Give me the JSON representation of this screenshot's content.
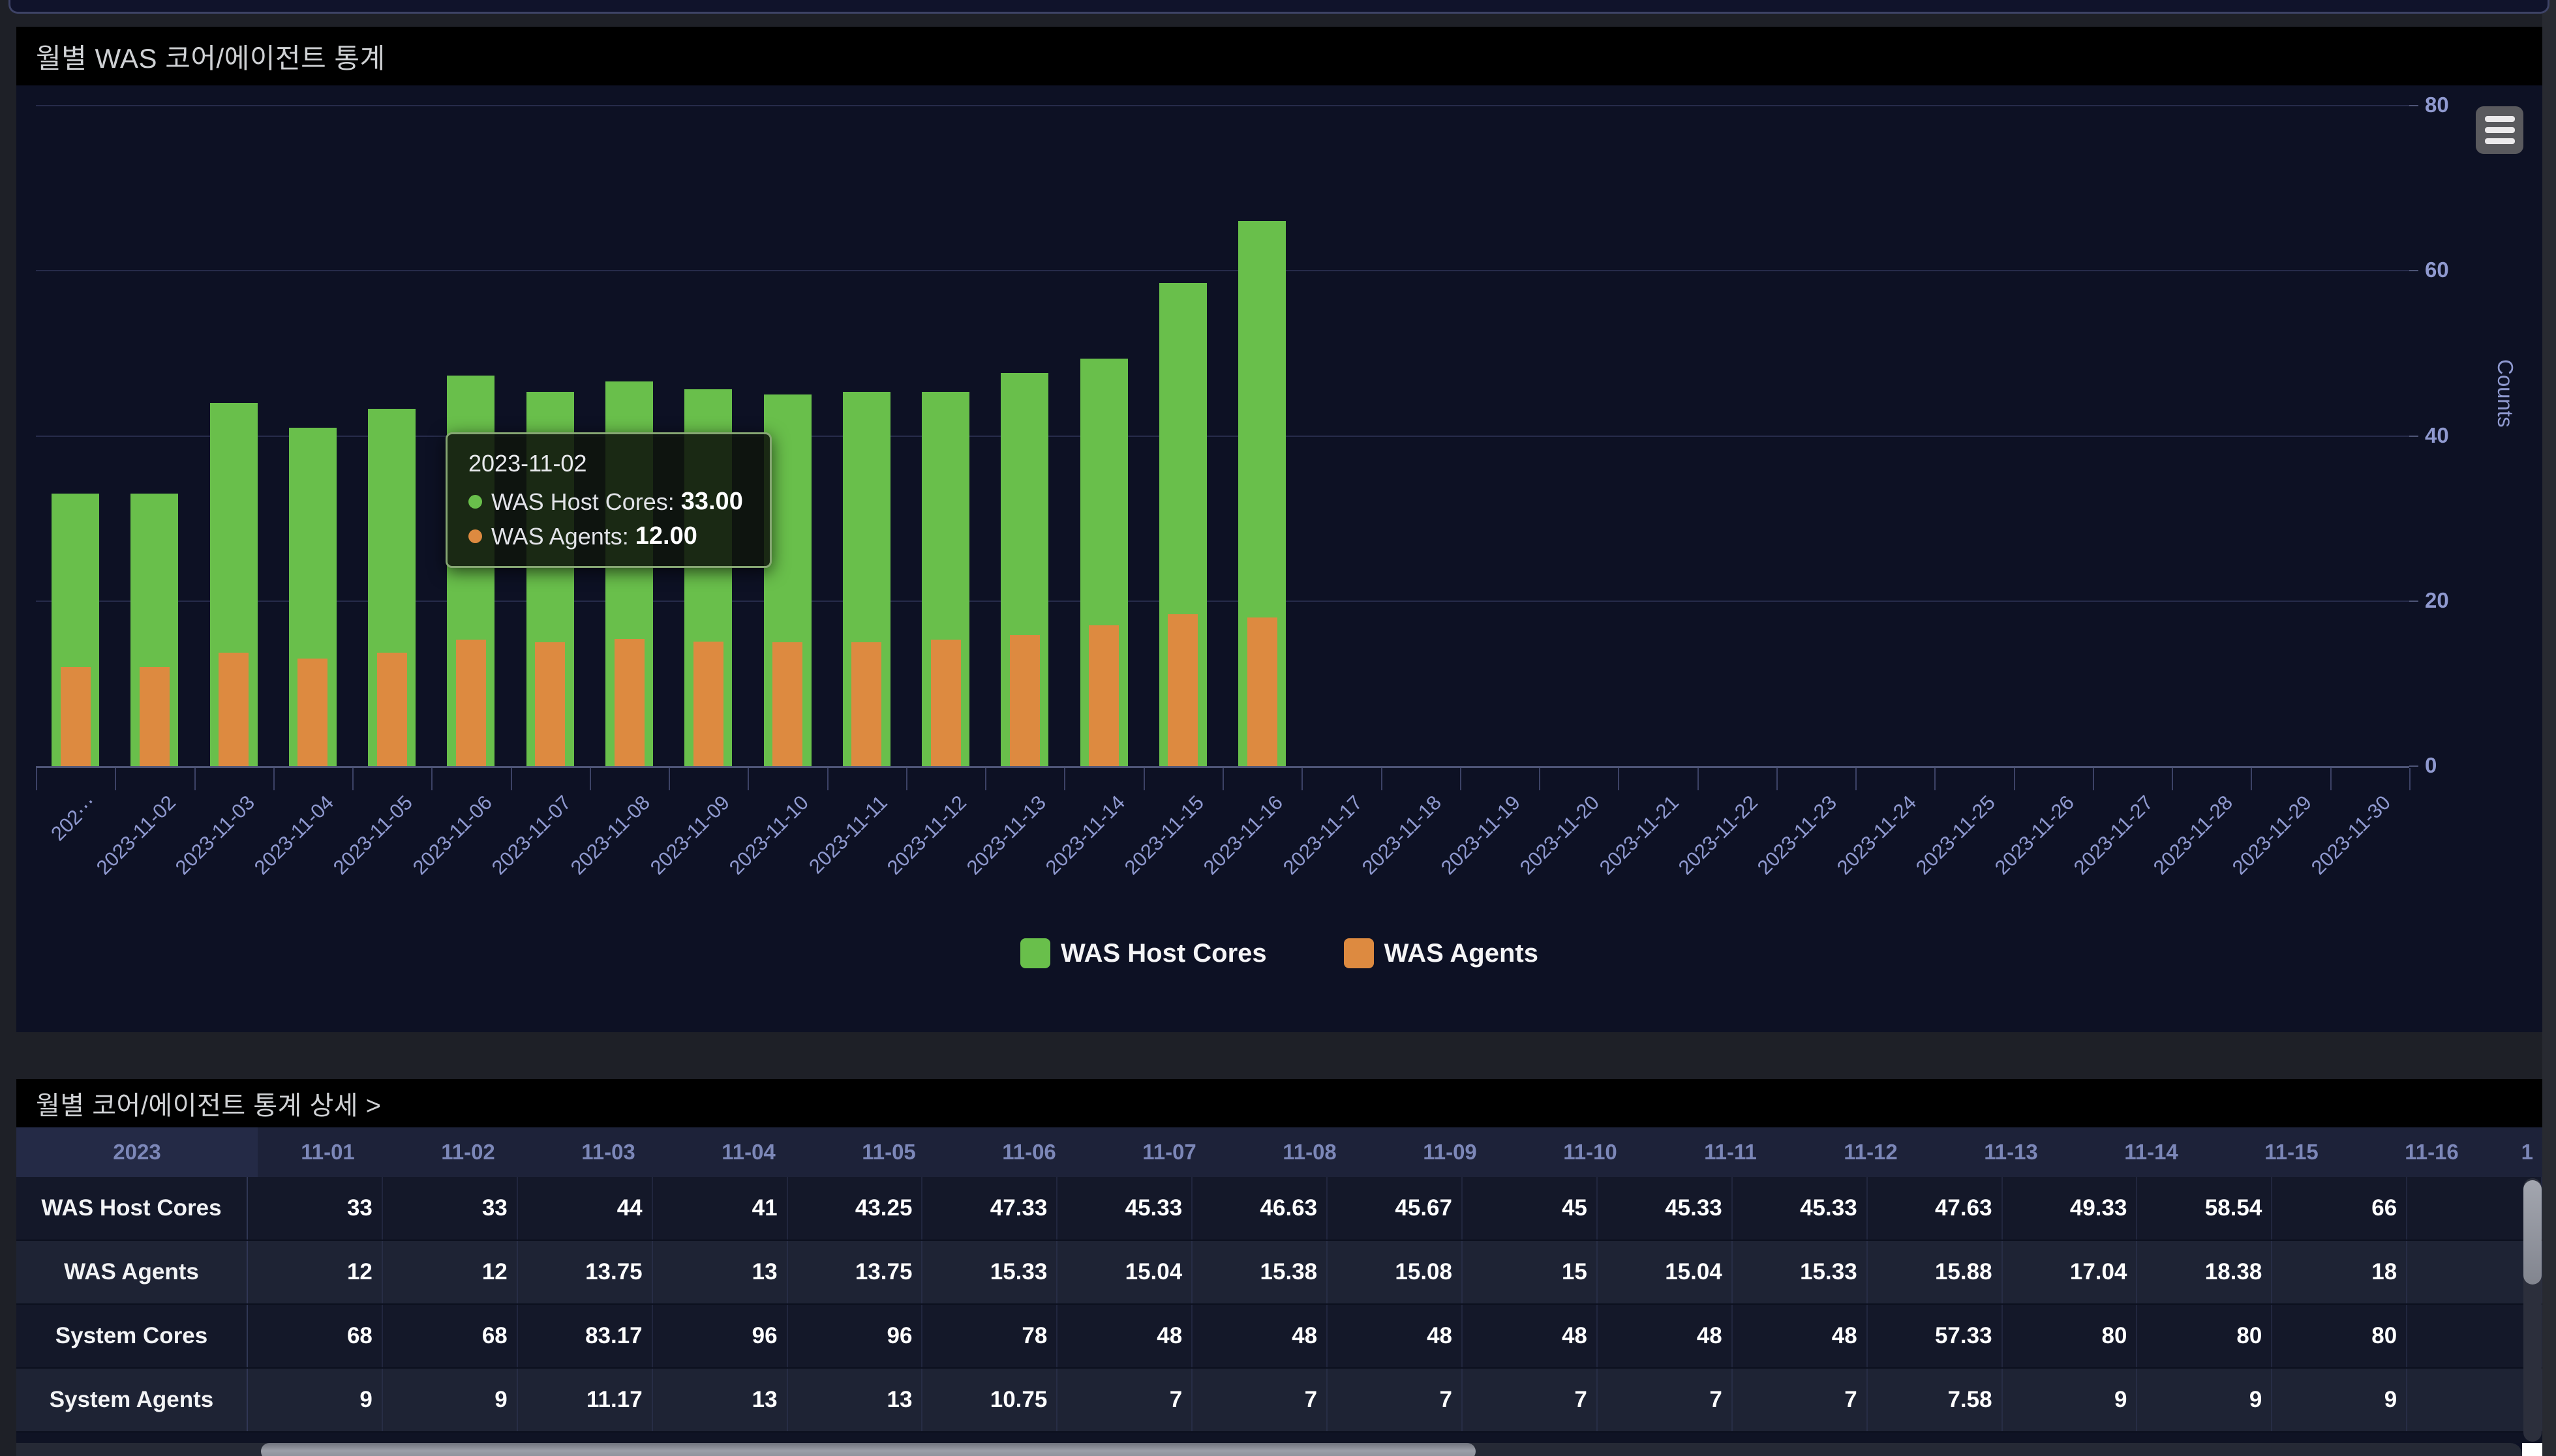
{
  "colors": {
    "host_cores_green": "#69bf4b",
    "agents_orange": "#dd8a40",
    "panel_background": "#0d1124",
    "axis_label": "#8f99cf"
  },
  "chart_panel": {
    "title": "월별 WAS 코어/에이전트 통계",
    "menu_icon": "hamburger-icon",
    "axis": {
      "y_title": "Counts"
    },
    "legend": [
      {
        "name": "WAS Host Cores",
        "color": "#69bf4b"
      },
      {
        "name": "WAS Agents",
        "color": "#dd8a40"
      }
    ],
    "tooltip": {
      "date": "2023-11-02",
      "items": [
        {
          "label": "WAS Host Cores:",
          "value": "33.00",
          "color": "#69bf4b"
        },
        {
          "label": "WAS Agents:",
          "value": "12.00",
          "color": "#dd8a40"
        }
      ]
    }
  },
  "chart_data": {
    "type": "bar",
    "title": "월별 WAS 코어/에이전트 통계",
    "bar_style": "overlapped",
    "x_labels": [
      "202⋯",
      "2023-11-02",
      "2023-11-03",
      "2023-11-04",
      "2023-11-05",
      "2023-11-06",
      "2023-11-07",
      "2023-11-08",
      "2023-11-09",
      "2023-11-10",
      "2023-11-11",
      "2023-11-12",
      "2023-11-13",
      "2023-11-14",
      "2023-11-15",
      "2023-11-16",
      "2023-11-17",
      "2023-11-18",
      "2023-11-19",
      "2023-11-20",
      "2023-11-21",
      "2023-11-22",
      "2023-11-23",
      "2023-11-24",
      "2023-11-25",
      "2023-11-26",
      "2023-11-27",
      "2023-11-28",
      "2023-11-29",
      "2023-11-30"
    ],
    "series": [
      {
        "name": "WAS Host Cores",
        "color": "#69bf4b",
        "values": [
          33,
          33,
          44,
          41,
          43.25,
          47.33,
          45.33,
          46.63,
          45.67,
          45,
          45.33,
          45.33,
          47.63,
          49.33,
          58.54,
          66
        ]
      },
      {
        "name": "WAS Agents",
        "color": "#dd8a40",
        "values": [
          12,
          12,
          13.75,
          13,
          13.75,
          15.33,
          15.04,
          15.38,
          15.08,
          15,
          15.04,
          15.33,
          15.88,
          17.04,
          18.38,
          18
        ]
      }
    ],
    "xlabel": "",
    "ylabel": "Counts",
    "ylim": [
      0,
      80
    ],
    "y_ticks": [
      0,
      20,
      40,
      60,
      80
    ],
    "grid": true,
    "legend_position": "bottom"
  },
  "table_panel": {
    "title": "월별 코어/에이전트 통계 상세 >",
    "header": {
      "year": "2023",
      "dates": [
        "11-01",
        "11-02",
        "11-03",
        "11-04",
        "11-05",
        "11-06",
        "11-07",
        "11-08",
        "11-09",
        "11-10",
        "11-11",
        "11-12",
        "11-13",
        "11-14",
        "11-15",
        "11-16"
      ],
      "partial_next": "1"
    },
    "rows": [
      {
        "label": "WAS Host Cores",
        "values": [
          "33",
          "33",
          "44",
          "41",
          "43.25",
          "47.33",
          "45.33",
          "46.63",
          "45.67",
          "45",
          "45.33",
          "45.33",
          "47.63",
          "49.33",
          "58.54",
          "66"
        ]
      },
      {
        "label": "WAS Agents",
        "values": [
          "12",
          "12",
          "13.75",
          "13",
          "13.75",
          "15.33",
          "15.04",
          "15.38",
          "15.08",
          "15",
          "15.04",
          "15.33",
          "15.88",
          "17.04",
          "18.38",
          "18"
        ]
      },
      {
        "label": "System Cores",
        "values": [
          "68",
          "68",
          "83.17",
          "96",
          "96",
          "78",
          "48",
          "48",
          "48",
          "48",
          "48",
          "48",
          "57.33",
          "80",
          "80",
          "80"
        ]
      },
      {
        "label": "System Agents",
        "values": [
          "9",
          "9",
          "11.17",
          "13",
          "13",
          "10.75",
          "7",
          "7",
          "7",
          "7",
          "7",
          "7",
          "7.58",
          "9",
          "9",
          "9"
        ]
      }
    ]
  }
}
